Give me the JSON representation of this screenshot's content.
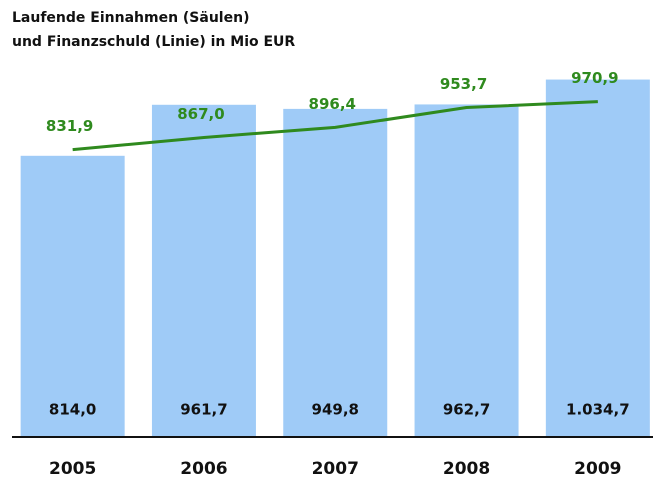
{
  "chart_data": {
    "type": "bar",
    "title": [
      "Laufende Einnahmen (Säulen)",
      "und Finanzschuld (Linie) in Mio EUR"
    ],
    "categories": [
      "2005",
      "2006",
      "2007",
      "2008",
      "2009"
    ],
    "ylim": [
      0,
      1100
    ],
    "series": [
      {
        "type": "bar",
        "color": "#9fcbf7",
        "values": [
          814.0,
          961.7,
          949.8,
          962.7,
          1034.7
        ],
        "value_labels": [
          "814,0",
          "961,7",
          "949,8",
          "962,7",
          "1.034,7"
        ]
      },
      {
        "type": "line",
        "color": "#2f8a1e",
        "values": [
          831.9,
          867.0,
          896.4,
          953.7,
          970.9
        ],
        "value_labels": [
          "831,9",
          "867,0",
          "896,4",
          "953,7",
          "970,9"
        ]
      }
    ]
  }
}
